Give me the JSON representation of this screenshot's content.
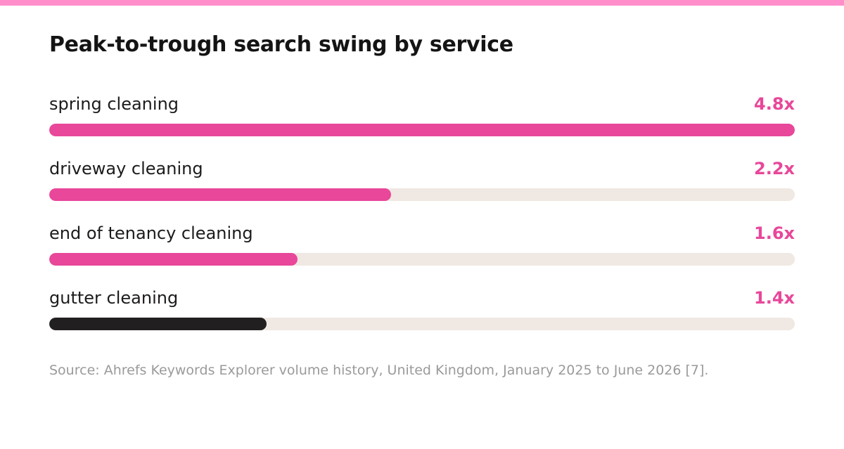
{
  "colors": {
    "top_stripe": "#ff8ecb",
    "accent": "#e8479a",
    "dark_bar": "#221f20",
    "track": "#f0e8e2"
  },
  "chart_data": {
    "type": "bar",
    "orientation": "horizontal",
    "title": "Peak-to-trough search swing by service",
    "categories": [
      "spring cleaning",
      "driveway cleaning",
      "end of tenancy cleaning",
      "gutter cleaning"
    ],
    "values": [
      4.8,
      2.2,
      1.6,
      1.4
    ],
    "value_labels": [
      "4.8x",
      "2.2x",
      "1.6x",
      "1.4x"
    ],
    "bar_colors": [
      "#e8479a",
      "#e8479a",
      "#e8479a",
      "#221f20"
    ],
    "xlim": [
      0,
      4.8
    ],
    "grid": false,
    "legend": "none"
  },
  "source": "Source: Ahrefs Keywords Explorer volume history, United Kingdom, January 2025 to June 2026 [7]."
}
